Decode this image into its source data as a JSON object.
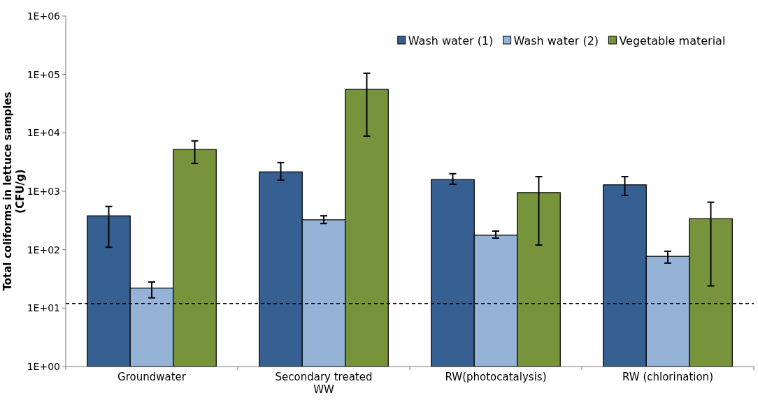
{
  "chart_data": {
    "type": "bar",
    "ylabel": "Total coliforms in lettuce samples (CFU/g)",
    "categories": [
      "Groundwater",
      "Secondary treated WW",
      "RW(photocatalysis)",
      "RW (chlorination)"
    ],
    "series": [
      {
        "name": "Wash water (1)",
        "color": "#376092",
        "values": [
          380,
          2150,
          1590,
          1290
        ],
        "errors": [
          [
            110,
            550
          ],
          [
            1550,
            3100
          ],
          [
            1320,
            2000
          ],
          [
            850,
            1780
          ]
        ]
      },
      {
        "name": "Wash water (2)",
        "color": "#95b3d7",
        "values": [
          22,
          325,
          177,
          77
        ],
        "errors": [
          [
            15,
            28
          ],
          [
            280,
            380
          ],
          [
            158,
            208
          ],
          [
            59,
            94
          ]
        ]
      },
      {
        "name": "Vegetable material",
        "color": "#77933c",
        "values": [
          5200,
          55600,
          950,
          340
        ],
        "errors": [
          [
            3000,
            7300
          ],
          [
            8800,
            105000
          ],
          [
            120,
            1780
          ],
          [
            24,
            650
          ]
        ]
      }
    ],
    "log": true,
    "ylim": [
      1,
      1000000
    ],
    "yticks": [
      {
        "value": 1,
        "label": "1E+00"
      },
      {
        "value": 10,
        "label": "1E+01"
      },
      {
        "value": 100,
        "label": "1E+02"
      },
      {
        "value": 1000,
        "label": "1E+03"
      },
      {
        "value": 10000,
        "label": "1E+04"
      },
      {
        "value": 100000,
        "label": "1E+05"
      },
      {
        "value": 1000000,
        "label": "1E+06"
      }
    ],
    "ref_lines": [
      {
        "axis": "y",
        "value": 12,
        "line_style": "dashed",
        "color": "#000000"
      }
    ],
    "legend": "top right",
    "grid": false
  }
}
